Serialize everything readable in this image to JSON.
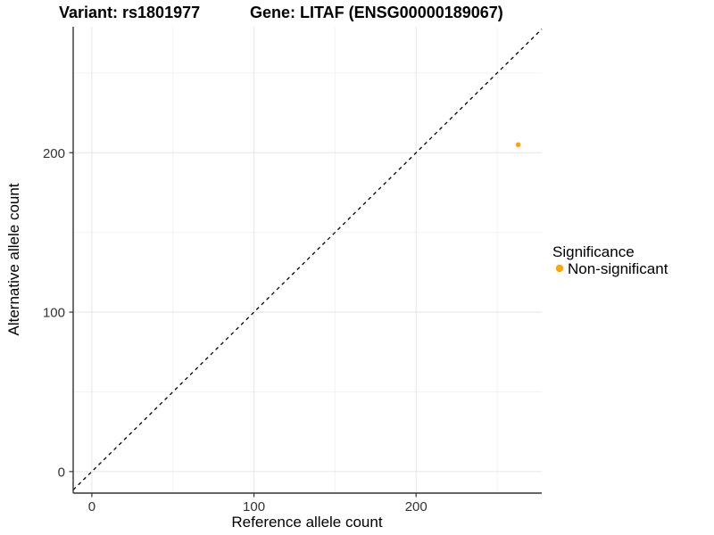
{
  "chart_data": {
    "type": "scatter",
    "title_variant": "Variant: rs1801977",
    "title_gene": "Gene: LITAF (ENSG00000189067)",
    "xlabel": "Reference allele count",
    "ylabel": "Alternative allele count",
    "xlim": [
      -11.5,
      277.5
    ],
    "ylim": [
      -13.5,
      279
    ],
    "x_ticks": [
      0,
      100,
      200
    ],
    "y_ticks": [
      0,
      100,
      200
    ],
    "x_minor_ticks": [
      50,
      150,
      250
    ],
    "y_minor_ticks": [
      50,
      150,
      250
    ],
    "grid": "major+minor",
    "identity_line": {
      "slope": 1,
      "intercept": 0,
      "style": "dashed",
      "color": "#000000"
    },
    "series": [
      {
        "name": "Non-significant",
        "color": "#FFA500",
        "points": [
          {
            "x": 263,
            "y": 205
          }
        ]
      }
    ],
    "legend": {
      "title": "Significance",
      "position": "right",
      "entries": [
        {
          "label": "Non-significant",
          "color": "#FFA500",
          "marker": "circle"
        }
      ]
    }
  },
  "colors": {
    "background": "#FFFFFF",
    "grid_major": "#E6E6E6",
    "grid_minor": "#F2F2F2",
    "axis_line": "#343434",
    "tick_mark": "#343434",
    "tick_label": "#333333",
    "point": "#FFA500",
    "identity_line": "#000000"
  }
}
